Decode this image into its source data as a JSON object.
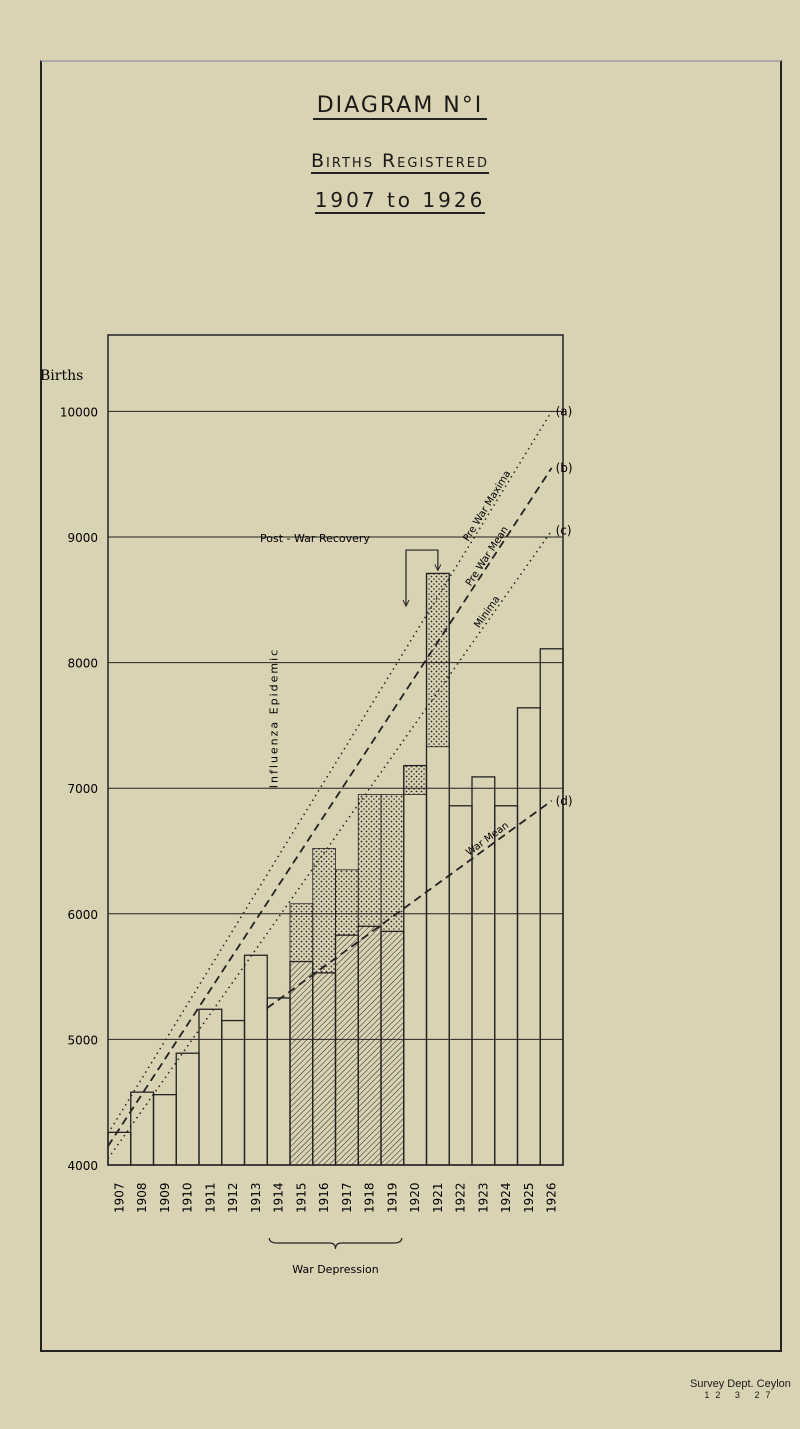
{
  "header": {
    "diagram": "DIAGRAM N°I",
    "title": "Births Registered",
    "period": "1907 to 1926"
  },
  "footer": {
    "publisher": "Survey Dept. Ceylon",
    "date": "12 3 27"
  },
  "colors": {
    "paper": "#d9d2b3",
    "ink": "#1b1a16"
  },
  "chart_data": {
    "type": "bar",
    "title": "Births Registered 1907 to 1926",
    "ylabel": "Births",
    "ylim": [
      4000,
      10600
    ],
    "yticks": [
      4000,
      5000,
      6000,
      7000,
      8000,
      9000,
      10000
    ],
    "ytick_labels": [
      "4000",
      "5000",
      "6000",
      "7000",
      "8000",
      "9000",
      "10000"
    ],
    "grid": true,
    "categories": [
      "1907",
      "1908",
      "1909",
      "1910",
      "1911",
      "1912",
      "1913",
      "1914",
      "1915",
      "1916",
      "1917",
      "1918",
      "1919",
      "1920",
      "1921",
      "1922",
      "1923",
      "1924",
      "1925",
      "1926"
    ],
    "values": [
      4260,
      4580,
      4560,
      4890,
      5240,
      5150,
      5670,
      5330,
      5620,
      5530,
      5830,
      5900,
      5860,
      7180,
      8710,
      6860,
      7090,
      6860,
      7640,
      8110
    ],
    "hatched_years": [
      "1915",
      "1916",
      "1917",
      "1918",
      "1919"
    ],
    "stipple": [
      {
        "year": "1915",
        "range": [
          5620,
          6080
        ]
      },
      {
        "year": "1916",
        "range": [
          5530,
          6520
        ]
      },
      {
        "year": "1917",
        "range": [
          5830,
          6350
        ]
      },
      {
        "year": "1918",
        "range": [
          5900,
          6950
        ]
      },
      {
        "year": "1919",
        "range": [
          5860,
          6950
        ]
      },
      {
        "year": "1920",
        "range": [
          6950,
          7180
        ]
      },
      {
        "year": "1921",
        "range": [
          7330,
          8710
        ]
      }
    ],
    "trend_lines": [
      {
        "key": "a",
        "label": "Pre War Maxima",
        "marker": "(a)",
        "style": "dotted",
        "from": [
          1907,
          4250
        ],
        "to": [
          1926.5,
          10000
        ]
      },
      {
        "key": "b",
        "label": "Pre War Mean",
        "marker": "(b)",
        "style": "dashed",
        "from": [
          1907,
          4150
        ],
        "to": [
          1926.5,
          9550
        ]
      },
      {
        "key": "c",
        "label": "Minima",
        "marker": "(c)",
        "style": "dotted",
        "from": [
          1907,
          4050
        ],
        "to": [
          1926.5,
          9050
        ]
      },
      {
        "key": "d",
        "label": "War Mean",
        "marker": "(d)",
        "style": "dashed",
        "from": [
          1914,
          5250
        ],
        "to": [
          1926.5,
          6900
        ]
      }
    ],
    "annotations": {
      "influenza": "Influenza Epidemic",
      "recovery": "Post - War Recovery",
      "war": "War Depression",
      "war_span": [
        "1914",
        "1919"
      ]
    }
  }
}
